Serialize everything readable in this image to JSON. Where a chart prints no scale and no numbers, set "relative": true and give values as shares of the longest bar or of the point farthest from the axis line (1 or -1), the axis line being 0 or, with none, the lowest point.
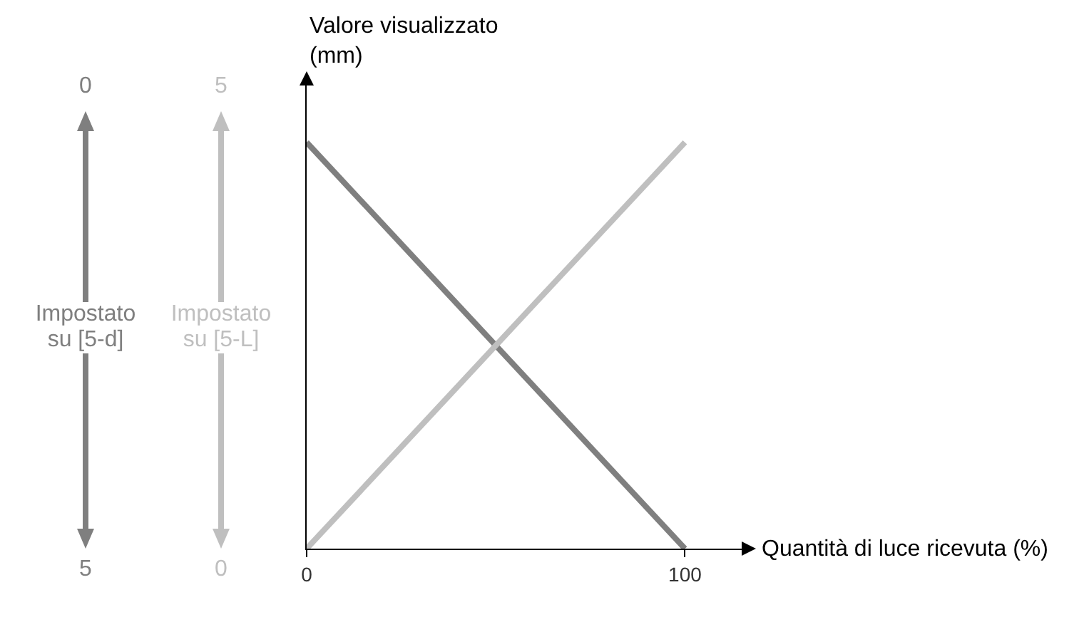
{
  "chart_data": {
    "type": "line",
    "relative": true,
    "xlabel": "Quantità di luce ricevuta (%)",
    "ylabel": "Valore visualizzato (mm)",
    "x": [
      0,
      100
    ],
    "xticks": [
      0,
      100
    ],
    "xlim": [
      0,
      115
    ],
    "series": [
      {
        "color": "#7f7f7f",
        "values": [
          1,
          0
        ]
      },
      {
        "color": "#bfbfbf",
        "values": [
          0,
          1
        ]
      }
    ],
    "annotations": [
      "0",
      "Impostato su [5-d]",
      "5",
      "5",
      "Impostato su [5-L]",
      "0"
    ],
    "marker": "none",
    "line_style": "solid"
  }
}
